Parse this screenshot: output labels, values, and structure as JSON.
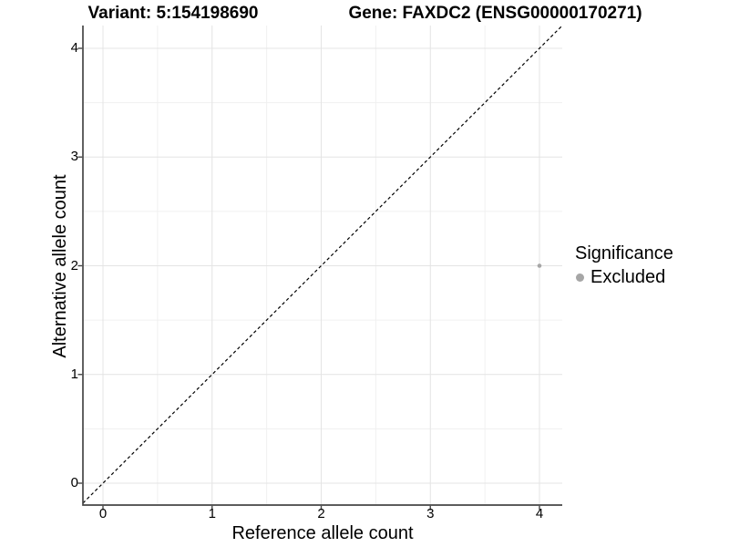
{
  "chart_data": {
    "type": "scatter",
    "titles": {
      "left": "Variant: 5:154198690",
      "right": "Gene: FAXDC2 (ENSG00000170271)"
    },
    "xlabel": "Reference allele count",
    "ylabel": "Alternative allele count",
    "x_ticks": [
      0,
      1,
      2,
      3,
      4
    ],
    "y_ticks": [
      0,
      1,
      2,
      3,
      4
    ],
    "xlim": [
      -0.18,
      4.21
    ],
    "ylim": [
      -0.2,
      4.21
    ],
    "grid": {
      "major": true,
      "minor": true,
      "minor_step": 0.5
    },
    "reference_line": {
      "kind": "identity",
      "equation": "y = x",
      "style": "dashed",
      "color": "#000000"
    },
    "points": [
      {
        "x": 4,
        "y": 2,
        "series": "Excluded"
      }
    ],
    "legend": {
      "title": "Significance",
      "position": "right",
      "items": [
        {
          "label": "Excluded",
          "color": "#a6a6a6"
        }
      ]
    },
    "colors": {
      "background": "#ffffff",
      "grid_major": "#e4e4e4",
      "grid_minor": "#f0f0f0",
      "axis": "#464646",
      "point": "#a6a6a6",
      "text": "#000000"
    }
  }
}
